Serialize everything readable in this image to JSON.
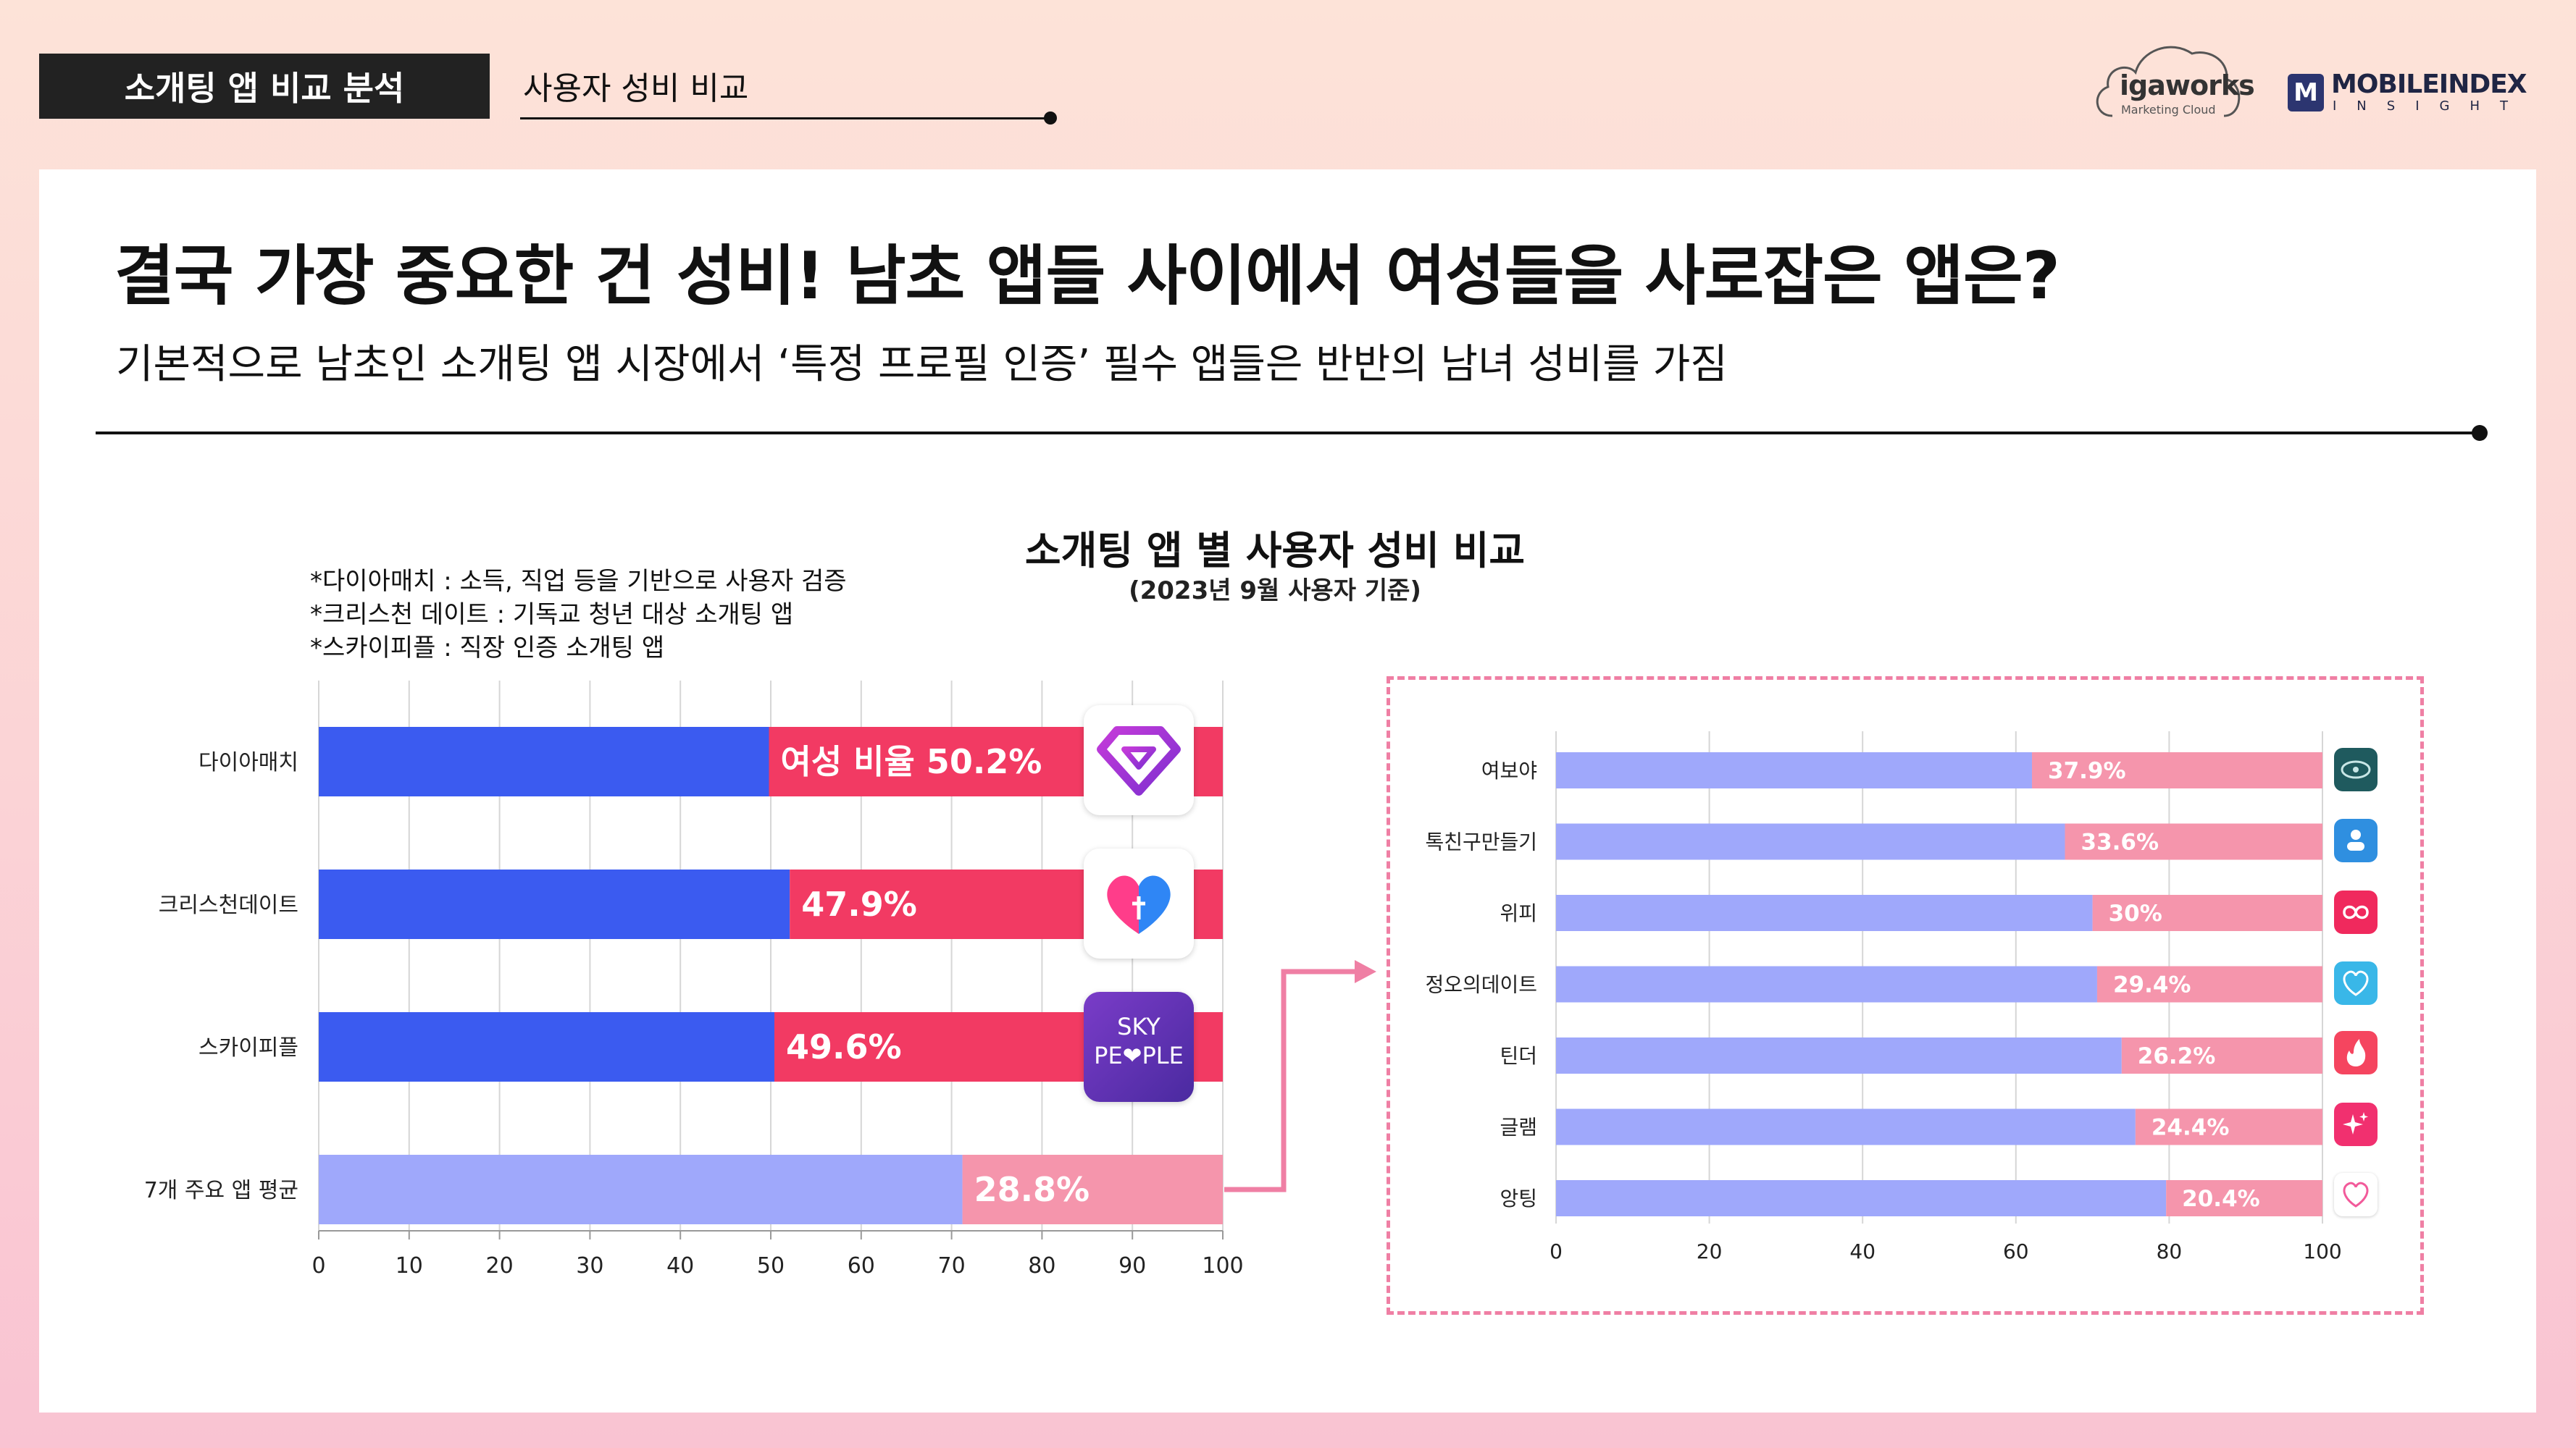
{
  "header": {
    "tag": "소개팅 앱 비교 분석",
    "sub": "사용자 성비 비교",
    "logo_iga": "igaworks",
    "logo_iga_sub": "Marketing Cloud",
    "logo_mi_badge": "M",
    "logo_mi_title": "MOBILEINDEX",
    "logo_mi_sub": "INSIGHT"
  },
  "headline": "결국 가장 중요한 건 성비! 남초 앱들 사이에서 여성들을 사로잡은 앱은?",
  "subline": "기본적으로 남초인 소개팅 앱 시장에서 ‘특정 프로필 인증’ 필수 앱들은 반반의 남녀 성비를 가짐",
  "chart_title": "소개팅 앱 별 사용자 성비 비교",
  "chart_subtitle": "(2023년 9월 사용자 기준)",
  "notes": [
    "*다이아매치 : 소득, 직업 등을 기반으로 사용자 검증",
    "*크리스천 데이트 : 기독교 청년 대상 소개팅 앱",
    "*스카이피플 : 직장 인증 소개팅 앱"
  ],
  "icons": {
    "diamatch": "diamond-heart-icon",
    "christian": "heart-cross-icon",
    "skypeople": "sky-people-icon",
    "skypeople_text1": "SKY",
    "skypeople_text2": "PE❤PLE"
  },
  "colors": {
    "male_strong": "#3b5bf0",
    "female_strong": "#f23a63",
    "male_light": "#9fa8fb",
    "female_light": "#f595ac",
    "dash": "#ef7fa4"
  },
  "chart_data": [
    {
      "type": "bar",
      "orientation": "horizontal",
      "stacked": true,
      "categories": [
        "다이아매치",
        "크리스천데이트",
        "스카이피플",
        "7개 주요 앱 평균"
      ],
      "series": [
        {
          "values": [
            49.8,
            52.1,
            50.4,
            71.2
          ]
        },
        {
          "name": "여성 비율",
          "values": [
            50.2,
            47.9,
            49.6,
            28.8
          ]
        }
      ],
      "data_labels": [
        "여성 비율 50.2%",
        "47.9%",
        "49.6%",
        "28.8%"
      ],
      "xlim": [
        0,
        100
      ],
      "xticks": [
        "0",
        "10",
        "20",
        "30",
        "40",
        "50",
        "60",
        "70",
        "80",
        "90",
        "100"
      ],
      "grid": true
    },
    {
      "type": "bar",
      "orientation": "horizontal",
      "stacked": true,
      "categories": [
        "여보야",
        "톡친구만들기",
        "위피",
        "정오의데이트",
        "틴더",
        "글램",
        "앙팅"
      ],
      "series": [
        {
          "values": [
            62.1,
            66.4,
            70,
            70.6,
            73.8,
            75.6,
            79.6
          ]
        },
        {
          "values": [
            37.9,
            33.6,
            30,
            29.4,
            26.2,
            24.4,
            20.4
          ]
        }
      ],
      "data_labels": [
        "37.9%",
        "33.6%",
        "30%",
        "29.4%",
        "26.2%",
        "24.4%",
        "20.4%"
      ],
      "xlim": [
        0,
        100
      ],
      "xticks": [
        "0",
        "20",
        "40",
        "60",
        "80",
        "100"
      ],
      "grid": true,
      "icons": [
        "yeoboya-icon",
        "talk-friend-icon",
        "wippy-icon",
        "noon-date-icon",
        "tinder-flame-icon",
        "glam-sparkle-icon",
        "angting-icon"
      ],
      "icon_colors": [
        "#1f5a5e",
        "#2f8fe0",
        "#f0295d",
        "#39b7e8",
        "#f5455f",
        "#f1306f",
        "#ffffff"
      ]
    }
  ]
}
